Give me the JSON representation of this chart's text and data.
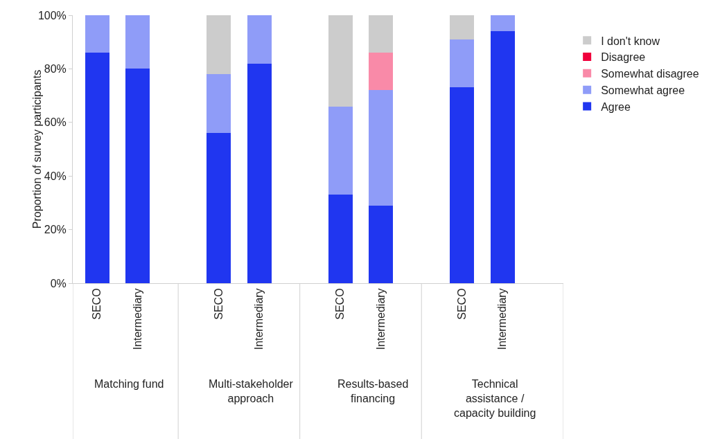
{
  "chart_data": {
    "type": "bar",
    "stacked": true,
    "ylabel": "Proportion of survey participants",
    "categories": [
      "SECO",
      "Intermediary",
      "SECO",
      "Intermediary",
      "SECO",
      "Intermediary",
      "SECO",
      "Intermediary"
    ],
    "series": [
      {
        "name": "Agree",
        "color": "#2036f0",
        "values": [
          86,
          80,
          56,
          82,
          33,
          29,
          73,
          94
        ]
      },
      {
        "name": "Somewhat agree",
        "color": "#8f9cf8",
        "values": [
          14,
          20,
          22,
          18,
          33,
          43,
          18,
          6
        ]
      },
      {
        "name": "Somewhat disagree",
        "color": "#f98aa8",
        "values": [
          0,
          0,
          0,
          0,
          0,
          14,
          0,
          0
        ]
      },
      {
        "name": "Disagree",
        "color": "#f0003c",
        "values": [
          0,
          0,
          0,
          0,
          0,
          0,
          0,
          0
        ]
      },
      {
        "name": "I don't know",
        "color": "#cccccc",
        "values": [
          0,
          0,
          22,
          0,
          34,
          14,
          9,
          0
        ]
      }
    ],
    "annotations": [
      "Matching fund",
      "Multi-stakeholder approach",
      "Results-based financing",
      "Technical assistance / capacity building"
    ],
    "ylim": [
      0,
      100
    ],
    "yticks": [
      {
        "value": 0,
        "label": "0%"
      },
      {
        "value": 20,
        "label": "20%"
      },
      {
        "value": 40,
        "label": "40%"
      },
      {
        "value": 60,
        "label": "60%"
      },
      {
        "value": 80,
        "label": "80%"
      },
      {
        "value": 100,
        "label": "100%"
      }
    ],
    "grid": false,
    "legend": "right"
  }
}
